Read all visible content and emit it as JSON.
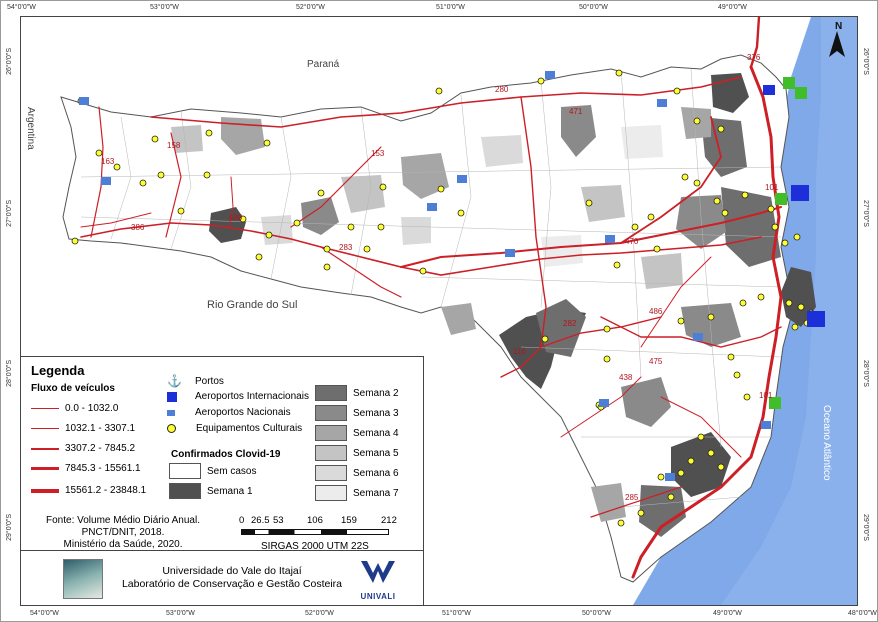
{
  "coords": {
    "top": [
      "54°0'0\"W",
      "53°0'0\"W",
      "52°0'0\"W",
      "51°0'0\"W",
      "50°0'0\"W",
      "49°0'0\"W"
    ],
    "bottom": [
      "54°0'0\"W",
      "53°0'0\"W",
      "52°0'0\"W",
      "51°0'0\"W",
      "50°0'0\"W",
      "49°0'0\"W",
      "48°0'0\"W"
    ],
    "left": [
      "26°0'0\"S",
      "27°0'0\"S",
      "28°0'0\"S",
      "29°0'0\"S"
    ],
    "right": [
      "26°0'0\"S",
      "27°0'0\"S",
      "28°0'0\"S",
      "29°0'0\"S"
    ]
  },
  "map_labels": {
    "parana": "Paraná",
    "argentina": "Argentina",
    "rio_grande": "Rio Grande do Sul",
    "ocean": "Oceano Atlântico",
    "north": "N"
  },
  "roads": [
    {
      "label": "376"
    },
    {
      "label": "280"
    },
    {
      "label": "471"
    },
    {
      "label": "163"
    },
    {
      "label": "158"
    },
    {
      "label": "153"
    },
    {
      "label": "480"
    },
    {
      "label": "386"
    },
    {
      "label": "283"
    },
    {
      "label": "470"
    },
    {
      "label": "101"
    },
    {
      "label": "282"
    },
    {
      "label": "116"
    },
    {
      "label": "486"
    },
    {
      "label": "475"
    },
    {
      "label": "438"
    },
    {
      "label": "101"
    },
    {
      "label": "285"
    }
  ],
  "legend": {
    "title": "Legenda",
    "flow_title": "Fluxo de veículos",
    "flow_classes": [
      "0.0 - 1032.0",
      "1032.1 - 3307.1",
      "3307.2 - 7845.2",
      "7845.3 - 15561.1",
      "15561.2 - 23848.1"
    ],
    "ports": "Portos",
    "intl_airports": "Aeroportos Internacionais",
    "natl_airports": "Aeroportos Nacionais",
    "cultural": "Equipamentos Culturais",
    "confirmed_title": "Confirmados Clovid-19",
    "no_cases": "Sem casos",
    "week1": "Semana 1",
    "weeks_right": [
      "Semana 2",
      "Semana 3",
      "Semana 4",
      "Semana 5",
      "Semana 6",
      "Semana 7"
    ],
    "source": [
      "Fonte: Volume Médio Diário Anual.",
      "PNCT/DNIT, 2018.",
      "Ministério da Saúde, 2020."
    ],
    "scale_ticks": [
      "0",
      "26.5",
      "53",
      "106",
      "159",
      "212"
    ],
    "projection": "SIRGAS 2000 UTM 22S",
    "institution": [
      "Universidade do Vale do Itajaí",
      "Laboratório de Conservação e Gestão Costeira"
    ],
    "univali": "UNIVALI"
  },
  "colors": {
    "road": "#cc1f26",
    "ocean": "#7fa9e8",
    "week1": "#505050",
    "week2": "#6e6e6e",
    "week3": "#8a8a8a",
    "week4": "#a6a6a6",
    "week5": "#c4c4c4",
    "week6": "#dadada",
    "week7": "#ececec",
    "culture": "#ffff2e",
    "port": "#3fbe2a",
    "airport": "#1d2fd8"
  }
}
